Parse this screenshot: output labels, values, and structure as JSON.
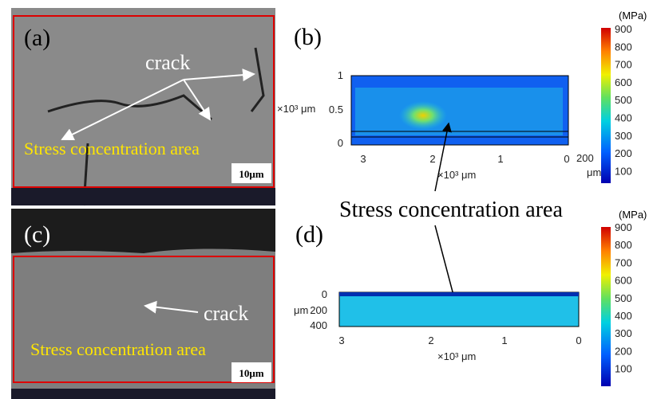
{
  "panel_a": {
    "label": "(a)",
    "crack": "crack",
    "area": "Stress concentration area",
    "scale": "10μm"
  },
  "panel_b": {
    "label": "(b)",
    "unit": "(MPa)",
    "colorbar": [
      "900",
      "800",
      "700",
      "600",
      "500",
      "400",
      "300",
      "200",
      "100"
    ],
    "y_axis_label": "×10³ μm",
    "yticks": [
      "1",
      "0.5",
      "0"
    ],
    "xticks": [
      "3",
      "2",
      "1",
      "0"
    ],
    "extra_tick": "200",
    "x_axis_label": "×10³ μm",
    "side_unit": "μm"
  },
  "middle_label": "Stress concentration area",
  "panel_c": {
    "label": "(c)",
    "crack": "crack",
    "area": "Stress concentration area",
    "scale": "10μm"
  },
  "panel_d": {
    "label": "(d)",
    "unit": "(MPa)",
    "colorbar": [
      "900",
      "800",
      "700",
      "600",
      "500",
      "400",
      "300",
      "200",
      "100"
    ],
    "y_axis_label": "μm",
    "yticks": [
      "0",
      "200",
      "400"
    ],
    "xticks": [
      "3",
      "2",
      "1",
      "0"
    ],
    "x_axis_label": "×10³ μm"
  }
}
